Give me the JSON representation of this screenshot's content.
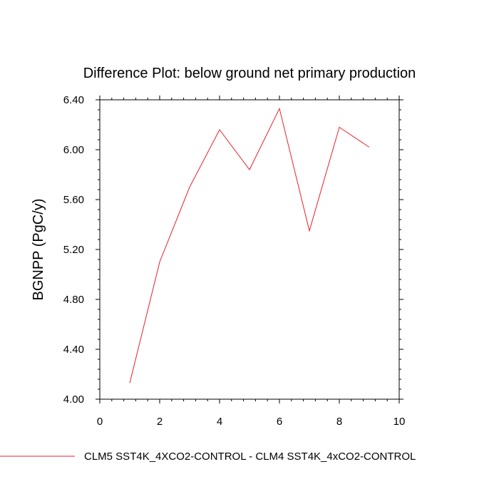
{
  "chart_data": {
    "type": "line",
    "title": "Difference Plot: below ground net primary production",
    "xlabel": "",
    "ylabel": "BGNPP  (PgC/y)",
    "xlim": [
      0,
      10
    ],
    "ylim": [
      4.0,
      6.4
    ],
    "xticks": [
      0,
      2,
      4,
      6,
      8,
      10
    ],
    "xtick_labels": [
      "0",
      "2",
      "4",
      "6",
      "8",
      "10"
    ],
    "yticks": [
      4.0,
      4.4,
      4.8,
      5.2,
      5.6,
      6.0,
      6.4
    ],
    "ytick_labels": [
      "4.00",
      "4.40",
      "4.80",
      "5.20",
      "5.60",
      "6.00",
      "6.40"
    ],
    "grid": false,
    "legend_position": "bottom",
    "series": [
      {
        "name": "CLM5 SST4K_4XCO2-CONTROL - CLM4 SST4K_4xCO2-CONTROL",
        "color": "#e8202a",
        "x": [
          1,
          2,
          3,
          4,
          5,
          6,
          7,
          8,
          9
        ],
        "values": [
          4.13,
          5.1,
          5.7,
          6.16,
          5.84,
          6.33,
          5.35,
          6.18,
          6.02
        ]
      }
    ]
  }
}
